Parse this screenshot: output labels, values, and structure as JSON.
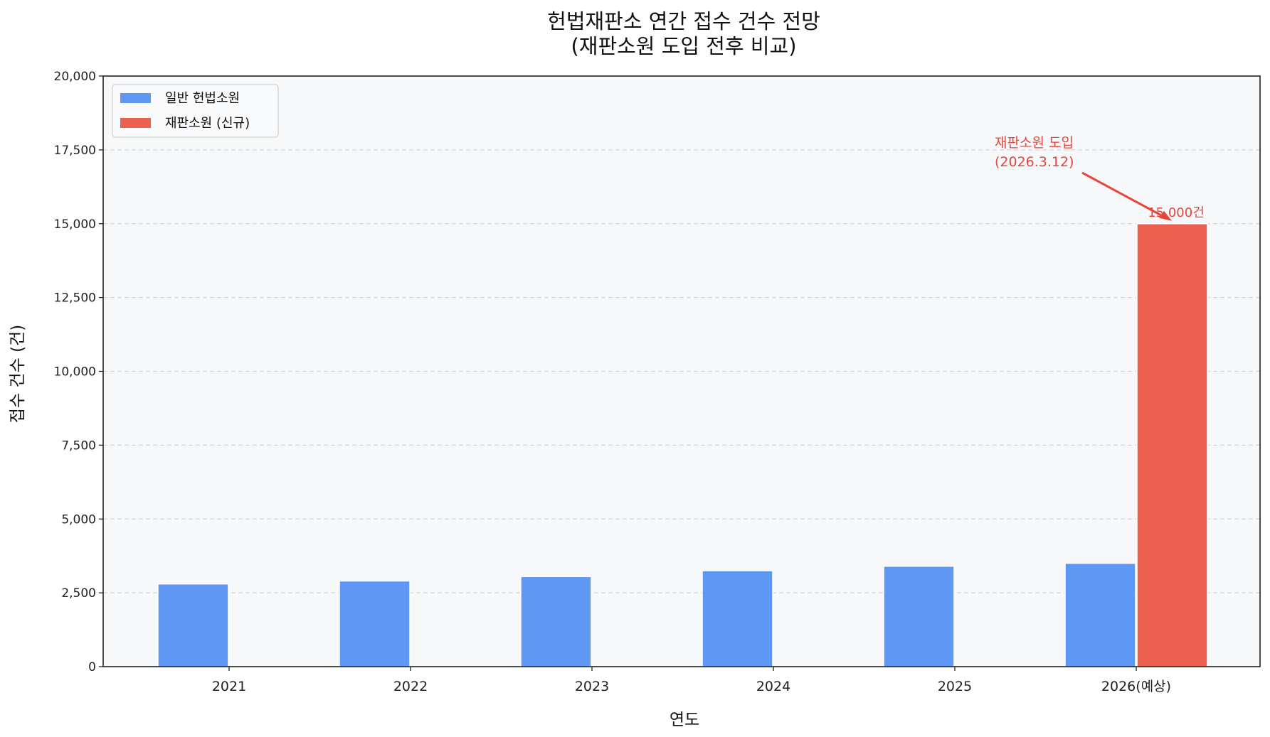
{
  "chart_data": {
    "type": "bar",
    "title": "헌법재판소 연간 접수 건수 전망\n(재판소원 도입 전후 비교)",
    "title_lines": [
      "헌법재판소 연간 접수 건수 전망",
      "(재판소원 도입 전후 비교)"
    ],
    "xlabel": "연도",
    "ylabel": "접수 건수 (건)",
    "categories": [
      "2021",
      "2022",
      "2023",
      "2024",
      "2025",
      "2026(예상)"
    ],
    "series": [
      {
        "name": "일반 헌법소원",
        "color": "#5f97f4",
        "values": [
          2800,
          2900,
          3050,
          3250,
          3400,
          3500
        ]
      },
      {
        "name": "재판소원 (신규)",
        "color": "#ec6052",
        "values": [
          0,
          0,
          0,
          0,
          0,
          15000
        ]
      }
    ],
    "ylim": [
      0,
      20000
    ],
    "yticks": [
      0,
      2500,
      5000,
      7500,
      10000,
      12500,
      15000,
      17500,
      20000
    ],
    "ytick_labels": [
      "0",
      "2,500",
      "5,000",
      "7,500",
      "10,000",
      "12,500",
      "15,000",
      "17,500",
      "20,000"
    ],
    "grid": {
      "axis": "y",
      "style": "dashed",
      "color": "#d4d6da"
    },
    "legend": {
      "position": "upper left",
      "entries": [
        "일반 헌법소원",
        "재판소원 (신규)"
      ]
    },
    "annotations": [
      {
        "text_lines": [
          "재판소원 도입",
          "(2026.3.12)"
        ],
        "color": "#e8453a",
        "arrow_to": "2026(예상) 재판소원 bar top"
      },
      {
        "text": "15,000건",
        "color": "#e8453a",
        "at": "2026(예상) 재판소원 bar top"
      }
    ],
    "background": "#f7f8fa"
  }
}
